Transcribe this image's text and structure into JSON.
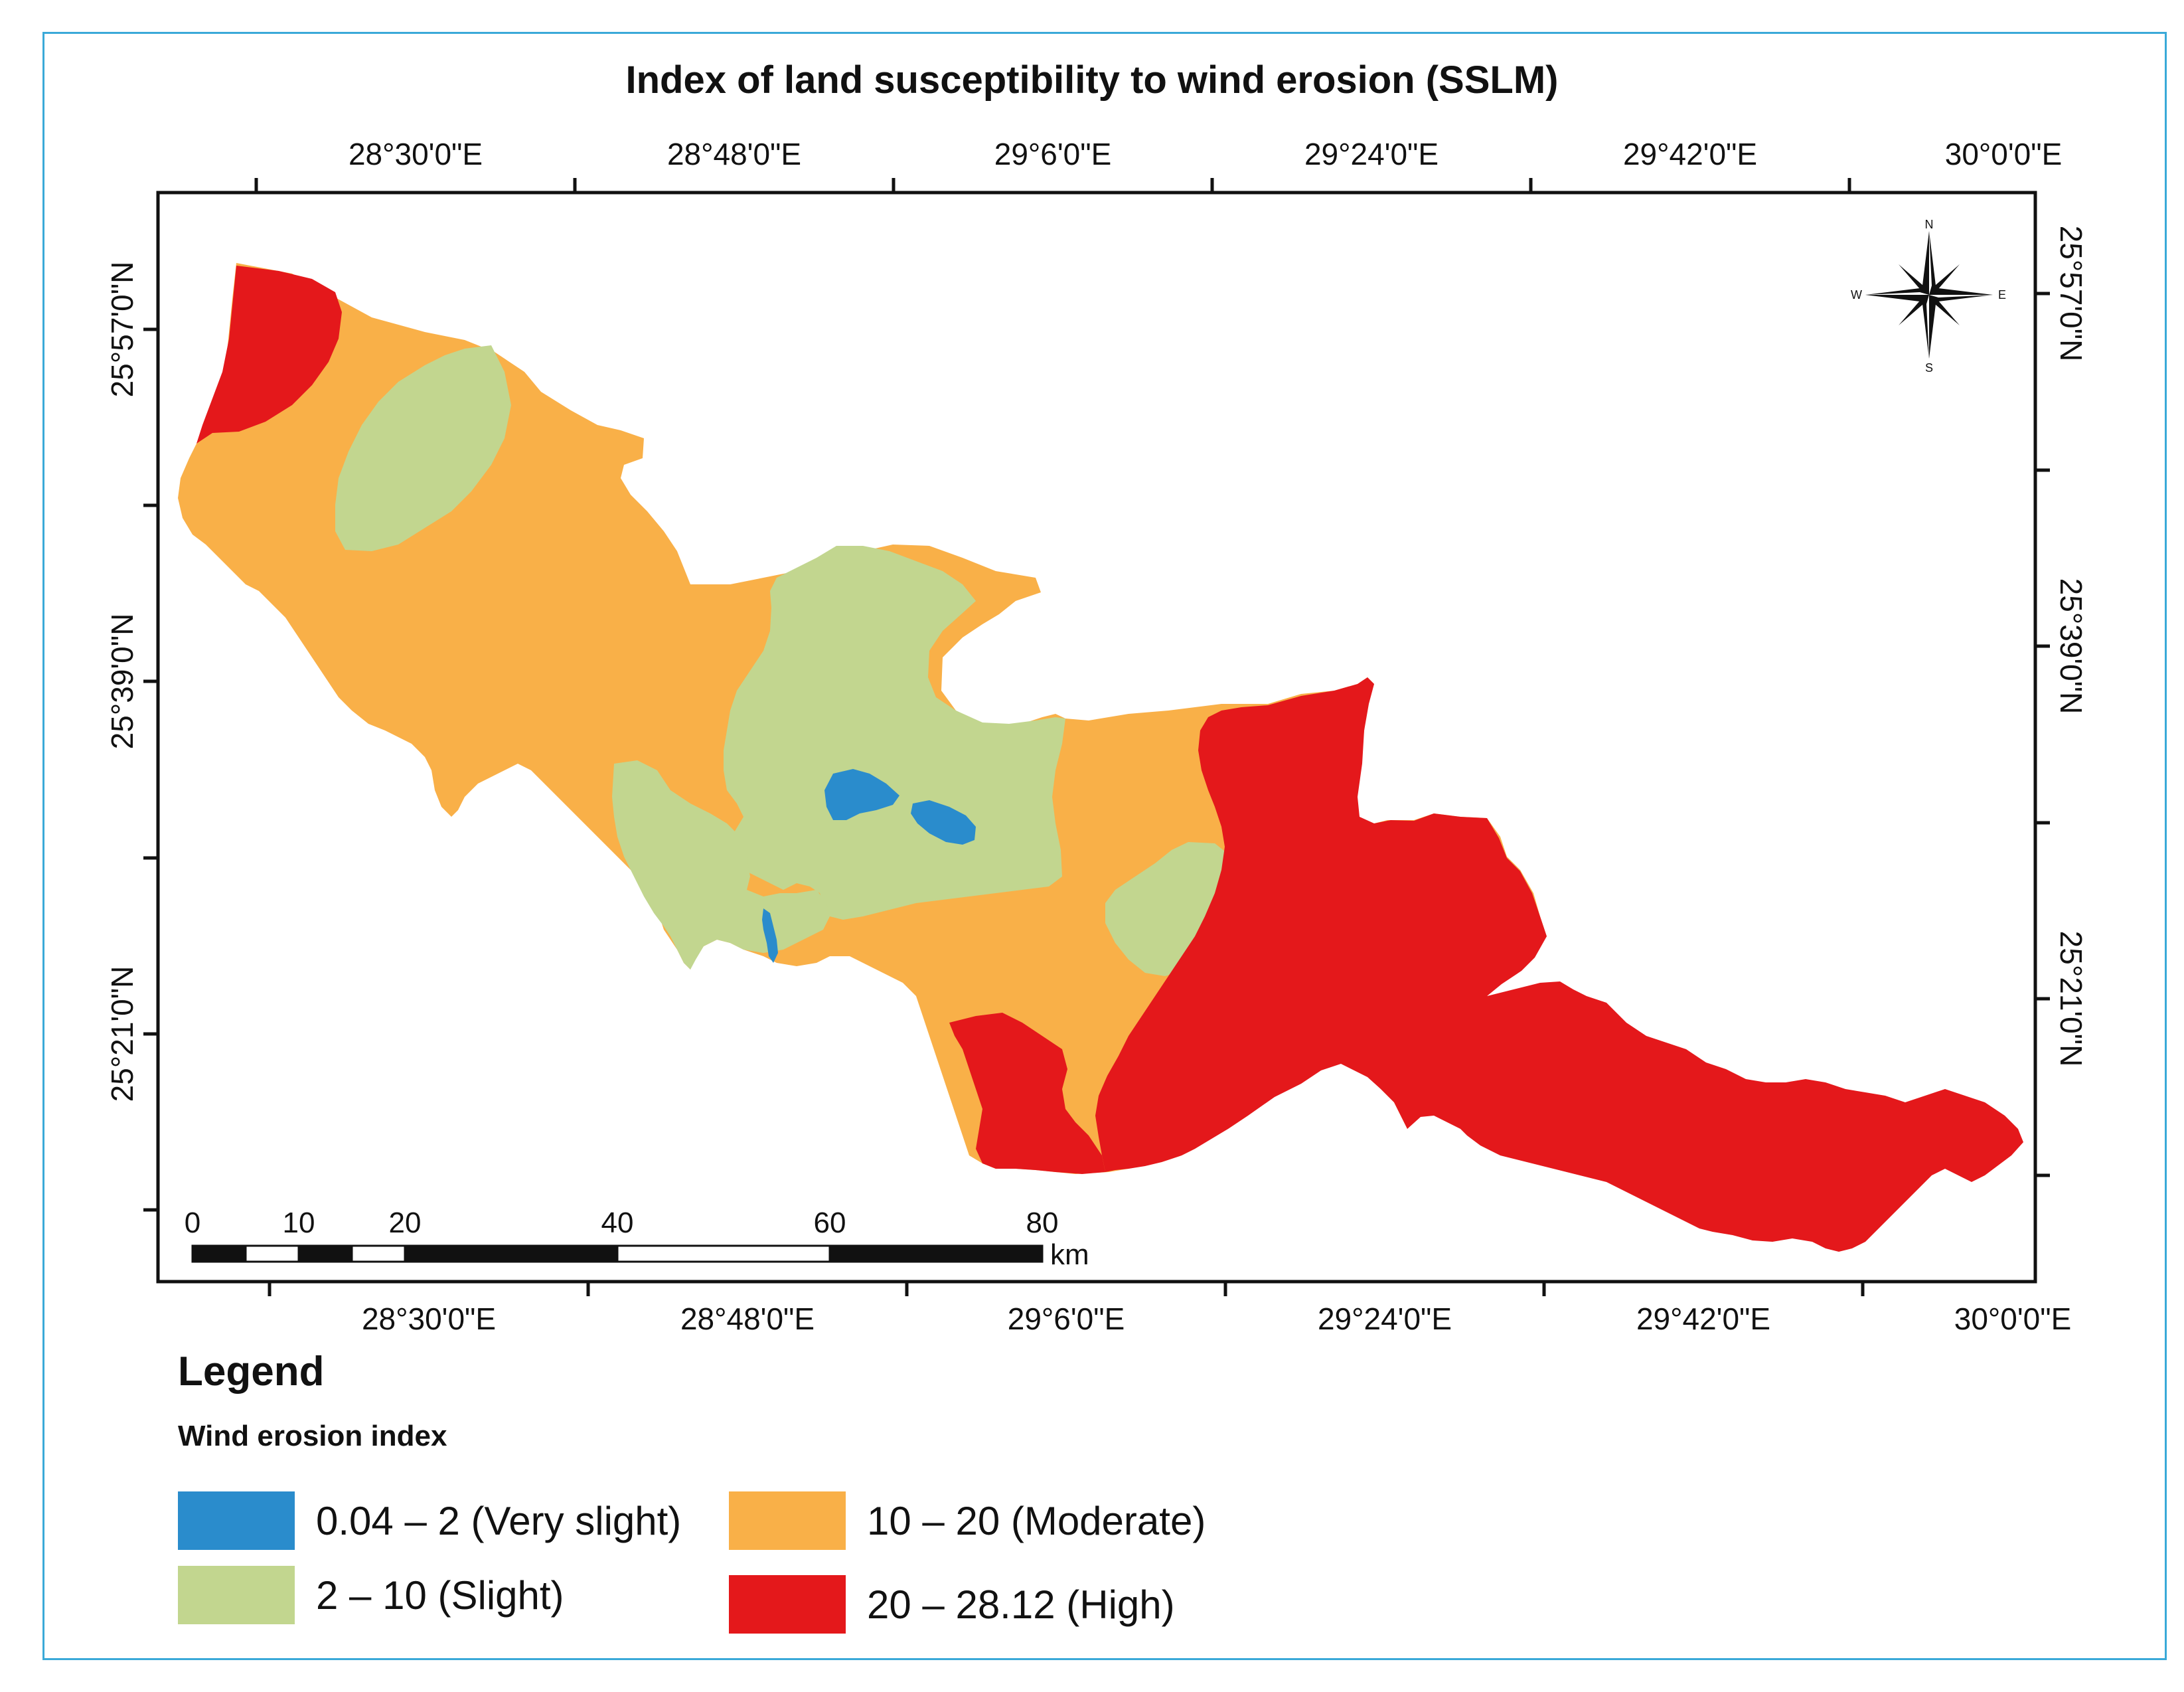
{
  "title": "Index of land susceptibility to wind erosion (SSLM)",
  "top_longitudes": [
    "28°30'0\"E",
    "28°48'0\"E",
    "29°6'0\"E",
    "29°24'0\"E",
    "29°42'0\"E",
    "30°0'0\"E"
  ],
  "bottom_longitudes": [
    "28°30'0\"E",
    "28°48'0\"E",
    "29°6'0\"E",
    "29°24'0\"E",
    "29°42'0\"E",
    "30°0'0\"E"
  ],
  "left_latitudes": [
    "25°57'0\"N",
    "25°39'0\"N",
    "25°21'0\"N"
  ],
  "right_latitudes": [
    "25°57'0\"N",
    "25°39'0\"N",
    "25°21'0\"N"
  ],
  "compass": {
    "n": "N",
    "s": "S",
    "e": "E",
    "w": "W"
  },
  "scale_bar": {
    "ticks": [
      "0",
      "10",
      "20",
      "40",
      "60",
      "80"
    ],
    "unit": "km"
  },
  "legend": {
    "title": "Legend",
    "subtitle": "Wind erosion index",
    "items": [
      {
        "label": "0.04 – 2 (Very slight)",
        "color": "#2a8ccc"
      },
      {
        "label": "2 – 10 (Slight)",
        "color": "#c2d68f"
      },
      {
        "label": "10 – 20 (Moderate)",
        "color": "#f9b048"
      },
      {
        "label": "20 – 28.12 (High)",
        "color": "#e4181b"
      }
    ]
  },
  "colors": {
    "frame": "#3aa9d8",
    "very_slight": "#2a8ccc",
    "slight": "#c2d68f",
    "moderate": "#f9b048",
    "high": "#e4181b"
  }
}
